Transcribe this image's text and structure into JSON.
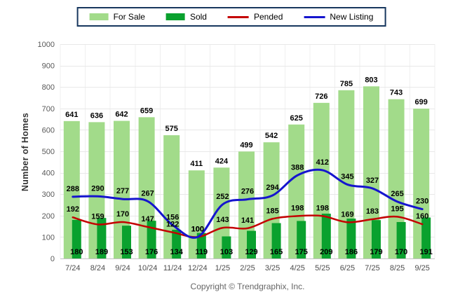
{
  "chart_data": {
    "type": "bar",
    "subtype": "grouped-overlap-bars-with-smooth-lines",
    "title": "",
    "ylabel": "Number of Homes",
    "xlabel": "",
    "ylim": [
      0,
      1000
    ],
    "ytick_step": 100,
    "grid": "horizontal-and-faint-vertical",
    "legend_position": "top-center",
    "categories": [
      "7/24",
      "8/24",
      "9/24",
      "10/24",
      "11/24",
      "12/24",
      "1/25",
      "2/25",
      "3/25",
      "4/25",
      "5/25",
      "6/25",
      "7/25",
      "8/25",
      "9/25"
    ],
    "series": [
      {
        "name": "For Sale",
        "type": "bar",
        "color": "#A2DB8A",
        "values": [
          641,
          636,
          642,
          659,
          575,
          411,
          424,
          499,
          542,
          625,
          726,
          785,
          803,
          743,
          699
        ]
      },
      {
        "name": "Sold",
        "type": "bar",
        "color": "#0AA12E",
        "values": [
          180,
          189,
          153,
          176,
          134,
          119,
          103,
          129,
          165,
          175,
          209,
          186,
          179,
          170,
          191
        ]
      },
      {
        "name": "Pended",
        "type": "line",
        "color": "#C40000",
        "values": [
          192,
          159,
          170,
          147,
          122,
          100,
          143,
          141,
          185,
          198,
          198,
          169,
          183,
          195,
          160
        ]
      },
      {
        "name": "New Listing",
        "type": "line",
        "color": "#1515CE",
        "values": [
          288,
          290,
          277,
          267,
          156,
          100,
          252,
          276,
          294,
          388,
          412,
          345,
          327,
          265,
          230
        ]
      }
    ],
    "ytick_labels": [
      "0",
      "100",
      "200",
      "300",
      "400",
      "500",
      "600",
      "700",
      "800",
      "900",
      "1000"
    ]
  },
  "footer": {
    "copyright": "Copyright © Trendgraphix, Inc."
  }
}
